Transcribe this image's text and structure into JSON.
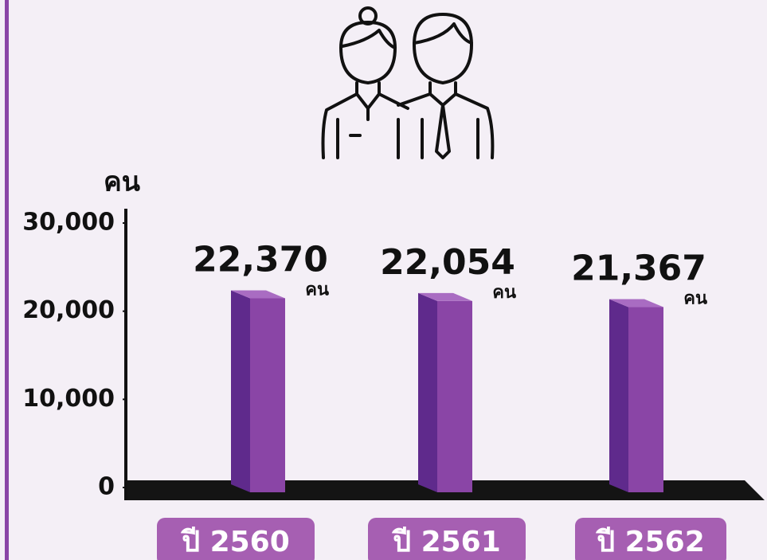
{
  "chart_data": {
    "type": "bar3d",
    "y_label": "คน",
    "value_unit": "คน",
    "categories": [
      "ปี 2560",
      "ปี 2561",
      "ปี 2562"
    ],
    "values": [
      22370,
      22054,
      21367
    ],
    "value_labels": [
      "22,370",
      "22,054",
      "21,367"
    ],
    "color": "#8a45a6",
    "ylim": [
      0,
      30000
    ],
    "yticks": [
      0,
      {
        "value": 10000,
        "label": "10,000"
      },
      {
        "value": 20000,
        "label": "20,000"
      },
      {
        "value": 30000,
        "label": "30,000"
      }
    ]
  }
}
